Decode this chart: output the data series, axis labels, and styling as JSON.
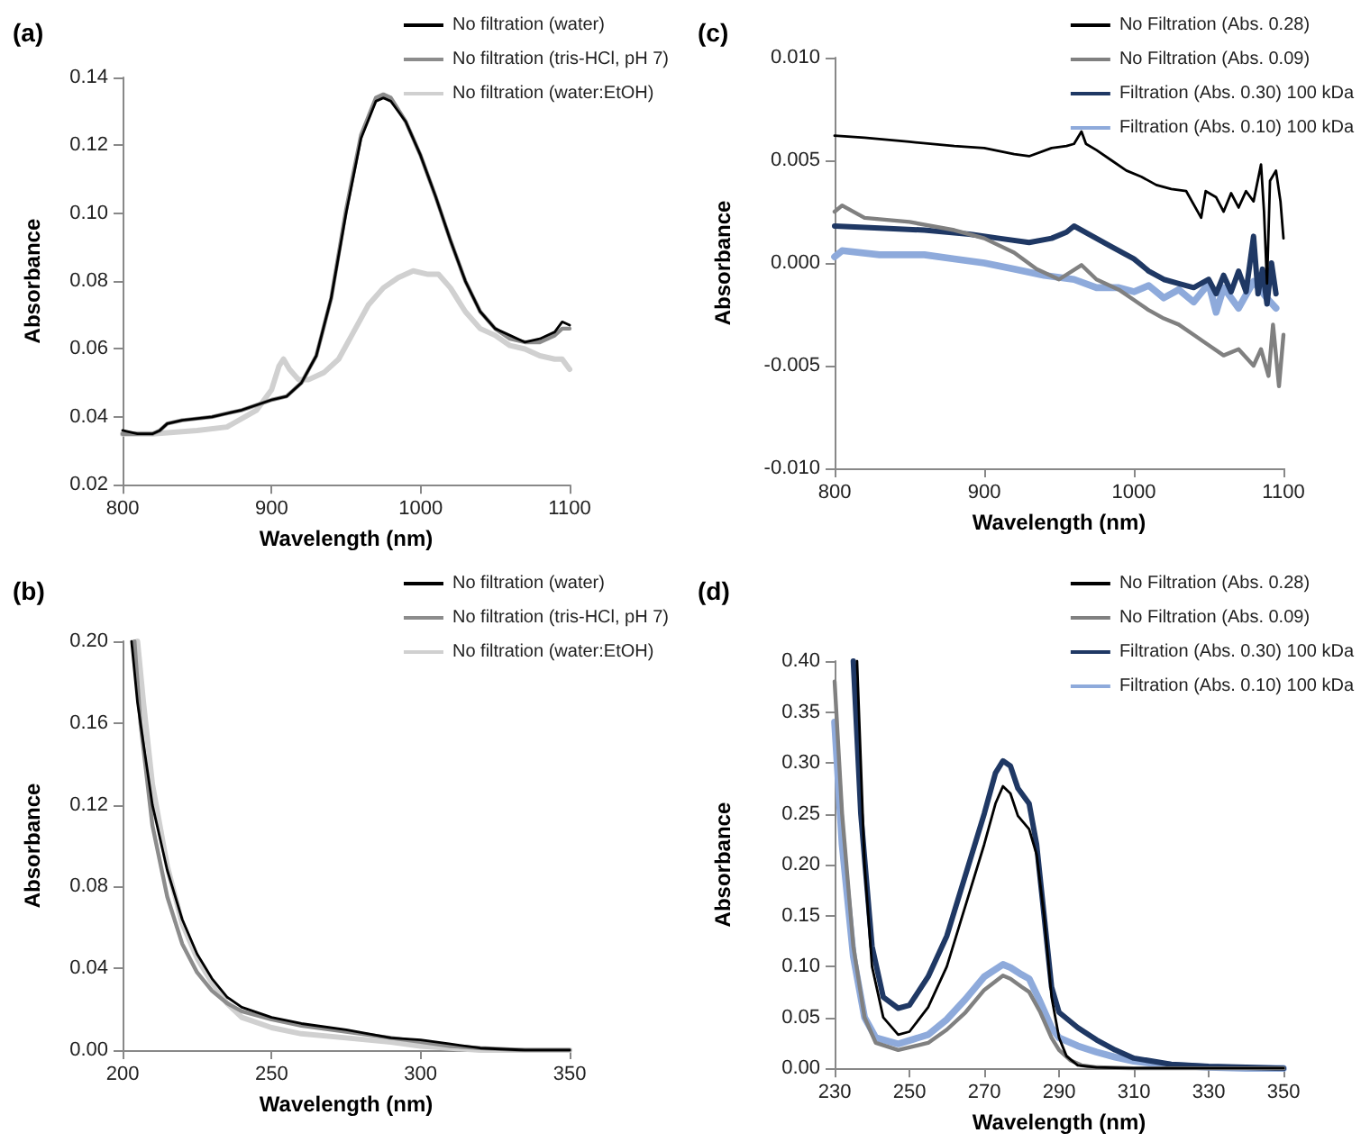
{
  "chart_data": [
    {
      "type": "line",
      "title": "(a)",
      "xlabel": "Wavelength (nm)",
      "ylabel": "Absorbance",
      "xlim": [
        800,
        1100
      ],
      "xticks": [
        800,
        900,
        1000,
        1100
      ],
      "ylim": [
        0.02,
        0.14
      ],
      "yticks": [
        {
          "value": 0.02,
          "label": "0.02"
        },
        {
          "value": 0.04,
          "label": "0.04"
        },
        {
          "value": 0.06,
          "label": "0.06"
        },
        {
          "value": 0.08,
          "label": "0.08"
        },
        {
          "value": 0.1,
          "label": "0.10"
        },
        {
          "value": 0.12,
          "label": "0.12"
        },
        {
          "value": 0.14,
          "label": "0.14"
        }
      ],
      "grid": false,
      "legend": "top right",
      "marker": "none",
      "line_style": "solid",
      "series": [
        {
          "name": "No filtration (water)",
          "color": "#000000",
          "x": [
            800,
            810,
            820,
            825,
            830,
            840,
            860,
            880,
            900,
            910,
            920,
            930,
            940,
            950,
            960,
            970,
            975,
            980,
            990,
            1000,
            1010,
            1020,
            1030,
            1040,
            1050,
            1060,
            1070,
            1080,
            1090,
            1095,
            1100
          ],
          "values": [
            0.036,
            0.035,
            0.035,
            0.036,
            0.038,
            0.039,
            0.04,
            0.042,
            0.045,
            0.046,
            0.05,
            0.058,
            0.075,
            0.1,
            0.122,
            0.133,
            0.134,
            0.133,
            0.127,
            0.117,
            0.105,
            0.092,
            0.08,
            0.071,
            0.066,
            0.064,
            0.062,
            0.063,
            0.065,
            0.068,
            0.067
          ]
        },
        {
          "name": "No filtration (tris-HCl, pH 7)",
          "color": "#8c8c8c",
          "x": [
            800,
            810,
            820,
            825,
            830,
            840,
            860,
            880,
            900,
            910,
            920,
            930,
            940,
            950,
            960,
            970,
            975,
            980,
            990,
            1000,
            1010,
            1020,
            1030,
            1040,
            1050,
            1060,
            1070,
            1080,
            1090,
            1095,
            1100
          ],
          "values": [
            0.035,
            0.035,
            0.035,
            0.036,
            0.038,
            0.039,
            0.04,
            0.042,
            0.045,
            0.046,
            0.05,
            0.058,
            0.075,
            0.101,
            0.123,
            0.134,
            0.135,
            0.134,
            0.127,
            0.117,
            0.105,
            0.092,
            0.08,
            0.071,
            0.066,
            0.063,
            0.062,
            0.062,
            0.064,
            0.066,
            0.066
          ]
        },
        {
          "name": "No filtration (water:EtOH)",
          "color": "#d0d0d0",
          "x": [
            800,
            820,
            850,
            870,
            890,
            900,
            905,
            908,
            912,
            918,
            925,
            935,
            945,
            955,
            965,
            975,
            985,
            995,
            1005,
            1012,
            1020,
            1030,
            1040,
            1050,
            1060,
            1070,
            1080,
            1090,
            1095,
            1100
          ],
          "values": [
            0.035,
            0.035,
            0.036,
            0.037,
            0.042,
            0.048,
            0.055,
            0.057,
            0.054,
            0.051,
            0.051,
            0.053,
            0.057,
            0.065,
            0.073,
            0.078,
            0.081,
            0.083,
            0.082,
            0.082,
            0.078,
            0.071,
            0.066,
            0.064,
            0.061,
            0.06,
            0.058,
            0.057,
            0.057,
            0.054
          ]
        }
      ]
    },
    {
      "type": "line",
      "title": "(c)",
      "xlabel": "Wavelength (nm)",
      "ylabel": "Absorbance",
      "xlim": [
        800,
        1100
      ],
      "xticks": [
        800,
        900,
        1000,
        1100
      ],
      "ylim": [
        -0.01,
        0.01
      ],
      "yticks": [
        {
          "value": -0.01,
          "label": "-0.010"
        },
        {
          "value": -0.005,
          "label": "-0.005"
        },
        {
          "value": 0,
          "label": "0.000"
        },
        {
          "value": 0.005,
          "label": "0.005"
        },
        {
          "value": 0.01,
          "label": "0.010"
        }
      ],
      "grid": false,
      "legend": "top right",
      "marker": "none",
      "line_style": "solid",
      "series": [
        {
          "name": "No Filtration (Abs. 0.28)",
          "color": "#000000",
          "x": [
            800,
            820,
            850,
            880,
            900,
            920,
            930,
            945,
            955,
            960,
            965,
            968,
            975,
            985,
            995,
            1005,
            1015,
            1025,
            1035,
            1045,
            1048,
            1055,
            1060,
            1065,
            1070,
            1075,
            1080,
            1085,
            1087,
            1089,
            1091,
            1095,
            1098,
            1100
          ],
          "values": [
            0.0062,
            0.0061,
            0.0059,
            0.0057,
            0.0056,
            0.0053,
            0.0052,
            0.0056,
            0.0057,
            0.0058,
            0.0064,
            0.0058,
            0.0055,
            0.005,
            0.0045,
            0.0042,
            0.0038,
            0.0036,
            0.0035,
            0.0022,
            0.0035,
            0.0032,
            0.0025,
            0.0034,
            0.0027,
            0.0035,
            0.003,
            0.0048,
            0.0025,
            -0.001,
            0.004,
            0.0045,
            0.003,
            0.0012
          ]
        },
        {
          "name": "No Filtration (Abs. 0.09)",
          "color": "#808080",
          "x": [
            800,
            805,
            820,
            850,
            880,
            900,
            920,
            935,
            950,
            965,
            975,
            990,
            1000,
            1010,
            1020,
            1030,
            1040,
            1050,
            1060,
            1070,
            1080,
            1085,
            1090,
            1093,
            1097,
            1100
          ],
          "values": [
            0.0025,
            0.0028,
            0.0022,
            0.002,
            0.0016,
            0.0012,
            0.0005,
            -0.0003,
            -0.0008,
            -0.0001,
            -0.0008,
            -0.0013,
            -0.0018,
            -0.0023,
            -0.0027,
            -0.003,
            -0.0035,
            -0.004,
            -0.0045,
            -0.0042,
            -0.005,
            -0.0042,
            -0.0055,
            -0.003,
            -0.006,
            -0.0035
          ]
        },
        {
          "name": "Filtration (Abs. 0.30) 100 kDa",
          "color": "#1f3864",
          "x": [
            800,
            830,
            860,
            890,
            910,
            930,
            945,
            955,
            960,
            970,
            985,
            1000,
            1010,
            1020,
            1030,
            1040,
            1050,
            1055,
            1060,
            1065,
            1070,
            1075,
            1080,
            1083,
            1086,
            1089,
            1092,
            1095
          ],
          "values": [
            0.0018,
            0.0017,
            0.0016,
            0.0014,
            0.0012,
            0.001,
            0.0012,
            0.0015,
            0.0018,
            0.0014,
            0.0008,
            0.0002,
            -0.0004,
            -0.0008,
            -0.001,
            -0.0012,
            -0.0008,
            -0.0015,
            -0.0006,
            -0.0014,
            -0.0004,
            -0.0014,
            0.0013,
            -0.0015,
            -0.0003,
            -0.002,
            0.0,
            -0.0015
          ]
        },
        {
          "name": "Filtration (Abs. 0.10) 100 kDa",
          "color": "#8eaadb",
          "x": [
            800,
            805,
            830,
            860,
            880,
            900,
            920,
            940,
            960,
            975,
            990,
            1000,
            1010,
            1020,
            1030,
            1040,
            1050,
            1055,
            1060,
            1070,
            1080,
            1090,
            1095
          ],
          "values": [
            0.0003,
            0.0006,
            0.0004,
            0.0004,
            0.0002,
            0.0,
            -0.0003,
            -0.0006,
            -0.0008,
            -0.0012,
            -0.0012,
            -0.0014,
            -0.0011,
            -0.0017,
            -0.0013,
            -0.0019,
            -0.001,
            -0.0024,
            -0.0012,
            -0.0022,
            -0.0009,
            -0.0018,
            -0.0022
          ]
        }
      ]
    },
    {
      "type": "line",
      "title": "(b)",
      "xlabel": "Wavelength (nm)",
      "ylabel": "Absorbance",
      "xlim": [
        200,
        350
      ],
      "xticks": [
        200,
        250,
        300,
        350
      ],
      "ylim": [
        0,
        0.2
      ],
      "yticks": [
        {
          "value": 0,
          "label": "0.00"
        },
        {
          "value": 0.04,
          "label": "0.04"
        },
        {
          "value": 0.08,
          "label": "0.08"
        },
        {
          "value": 0.12,
          "label": "0.12"
        },
        {
          "value": 0.16,
          "label": "0.16"
        },
        {
          "value": 0.2,
          "label": "0.20"
        }
      ],
      "grid": false,
      "legend": "top right",
      "marker": "none",
      "line_style": "solid",
      "series": [
        {
          "name": "No filtration (water)",
          "color": "#000000",
          "x": [
            203,
            205,
            210,
            215,
            220,
            225,
            230,
            235,
            240,
            250,
            260,
            275,
            290,
            300,
            310,
            320,
            335,
            350
          ],
          "values": [
            0.2,
            0.17,
            0.12,
            0.088,
            0.064,
            0.047,
            0.035,
            0.026,
            0.021,
            0.016,
            0.013,
            0.01,
            0.006,
            0.005,
            0.003,
            0.001,
            0.0,
            0.0
          ]
        },
        {
          "name": "No filtration (tris-HCl, pH 7)",
          "color": "#8c8c8c",
          "x": [
            204,
            206,
            210,
            215,
            220,
            225,
            230,
            235,
            240,
            250,
            260,
            275,
            290,
            300,
            310,
            320,
            335,
            350
          ],
          "values": [
            0.2,
            0.16,
            0.11,
            0.075,
            0.052,
            0.038,
            0.029,
            0.023,
            0.019,
            0.015,
            0.012,
            0.009,
            0.006,
            0.004,
            0.002,
            0.001,
            0.0,
            0.0
          ]
        },
        {
          "name": "No filtration (water:EtOH)",
          "color": "#d0d0d0",
          "x": [
            205,
            207,
            210,
            215,
            220,
            225,
            230,
            235,
            240,
            250,
            260,
            275,
            290,
            300,
            310,
            320,
            350
          ],
          "values": [
            0.2,
            0.17,
            0.13,
            0.09,
            0.062,
            0.045,
            0.033,
            0.023,
            0.016,
            0.011,
            0.008,
            0.006,
            0.004,
            0.002,
            0.001,
            0.0,
            0.0
          ]
        }
      ]
    },
    {
      "type": "line",
      "title": "(d)",
      "xlabel": "Wavelength (nm)",
      "ylabel": "Absorbance",
      "xlim": [
        230,
        350
      ],
      "xticks": [
        230,
        250,
        270,
        290,
        310,
        330,
        350
      ],
      "ylim": [
        0,
        0.4
      ],
      "yticks": [
        {
          "value": 0,
          "label": "0.00"
        },
        {
          "value": 0.05,
          "label": "0.05"
        },
        {
          "value": 0.1,
          "label": "0.10"
        },
        {
          "value": 0.15,
          "label": "0.15"
        },
        {
          "value": 0.2,
          "label": "0.20"
        },
        {
          "value": 0.25,
          "label": "0.25"
        },
        {
          "value": 0.3,
          "label": "0.30"
        },
        {
          "value": 0.35,
          "label": "0.35"
        },
        {
          "value": 0.4,
          "label": "0.40"
        }
      ],
      "grid": false,
      "legend": "top right",
      "marker": "none",
      "line_style": "solid",
      "series": [
        {
          "name": "No Filtration (Abs. 0.28)",
          "color": "#000000",
          "x": [
            236,
            238,
            240,
            243,
            247,
            250,
            255,
            260,
            265,
            270,
            273,
            275,
            277,
            279,
            282,
            284,
            286,
            288,
            290,
            292,
            295,
            300,
            310,
            350
          ],
          "values": [
            0.4,
            0.2,
            0.1,
            0.05,
            0.033,
            0.036,
            0.06,
            0.1,
            0.16,
            0.22,
            0.26,
            0.277,
            0.27,
            0.248,
            0.235,
            0.21,
            0.15,
            0.07,
            0.03,
            0.012,
            0.003,
            0.001,
            0.0,
            0.0
          ]
        },
        {
          "name": "No Filtration (Abs. 0.09)",
          "color": "#808080",
          "x": [
            230,
            232,
            235,
            238,
            241,
            247,
            255,
            260,
            265,
            270,
            275,
            277,
            280,
            282,
            285,
            288,
            290,
            293,
            296,
            300,
            310,
            350
          ],
          "values": [
            0.38,
            0.25,
            0.12,
            0.05,
            0.025,
            0.018,
            0.025,
            0.038,
            0.055,
            0.077,
            0.091,
            0.088,
            0.08,
            0.075,
            0.055,
            0.03,
            0.018,
            0.008,
            0.003,
            0.001,
            0.0,
            0.0
          ]
        },
        {
          "name": "Filtration (Abs. 0.30) 100 kDa",
          "color": "#1f3864",
          "x": [
            235,
            237,
            240,
            243,
            247,
            250,
            255,
            260,
            265,
            270,
            273,
            275,
            277,
            279,
            282,
            284,
            286,
            288,
            290,
            295,
            300,
            305,
            310,
            320,
            330,
            340,
            350
          ],
          "values": [
            0.4,
            0.25,
            0.12,
            0.07,
            0.059,
            0.062,
            0.09,
            0.13,
            0.19,
            0.25,
            0.29,
            0.302,
            0.297,
            0.275,
            0.26,
            0.22,
            0.15,
            0.08,
            0.055,
            0.04,
            0.028,
            0.018,
            0.01,
            0.004,
            0.002,
            0.001,
            0.0
          ]
        },
        {
          "name": "Filtration (Abs. 0.10) 100 kDa",
          "color": "#8eaadb",
          "x": [
            230,
            232,
            235,
            238,
            241,
            247,
            255,
            260,
            265,
            270,
            275,
            277,
            280,
            282,
            285,
            288,
            290,
            295,
            300,
            305,
            310,
            320,
            330,
            340,
            350
          ],
          "values": [
            0.34,
            0.22,
            0.11,
            0.05,
            0.03,
            0.024,
            0.033,
            0.048,
            0.068,
            0.09,
            0.102,
            0.099,
            0.092,
            0.088,
            0.065,
            0.04,
            0.03,
            0.022,
            0.016,
            0.011,
            0.007,
            0.003,
            0.001,
            0.0,
            0.0
          ]
        }
      ]
    }
  ]
}
